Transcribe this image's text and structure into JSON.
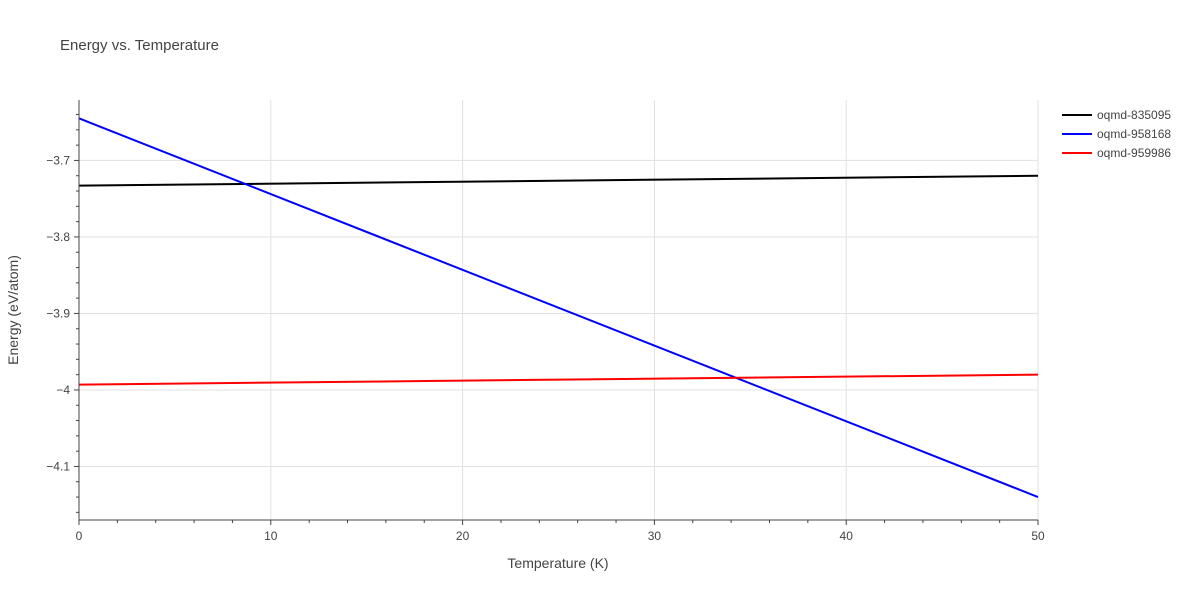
{
  "chart_data": {
    "type": "line",
    "title": "Energy vs. Temperature",
    "xlabel": "Temperature (K)",
    "ylabel": "Energy (eV/atom)",
    "xlim": [
      0,
      50
    ],
    "ylim": [
      -4.17,
      -3.621
    ],
    "x_ticks": [
      0,
      10,
      20,
      30,
      40,
      50
    ],
    "x_tick_labels": [
      "0",
      "10",
      "20",
      "30",
      "40",
      "50"
    ],
    "y_ticks": [
      -3.7,
      -3.8,
      -3.9,
      -4.0,
      -4.1
    ],
    "y_tick_labels": [
      "−3.7",
      "−3.8",
      "−3.9",
      "−4",
      "−4.1"
    ],
    "grid": true,
    "legend_position": "top-right",
    "series": [
      {
        "name": "oqmd-835095",
        "color": "#000000",
        "x": [
          0,
          50
        ],
        "y": [
          -3.733,
          -3.72
        ]
      },
      {
        "name": "oqmd-958168",
        "color": "#0000ff",
        "x": [
          0,
          50
        ],
        "y": [
          -3.645,
          -4.14
        ]
      },
      {
        "name": "oqmd-959986",
        "color": "#ff0000",
        "x": [
          0,
          50
        ],
        "y": [
          -3.993,
          -3.98
        ]
      }
    ]
  }
}
